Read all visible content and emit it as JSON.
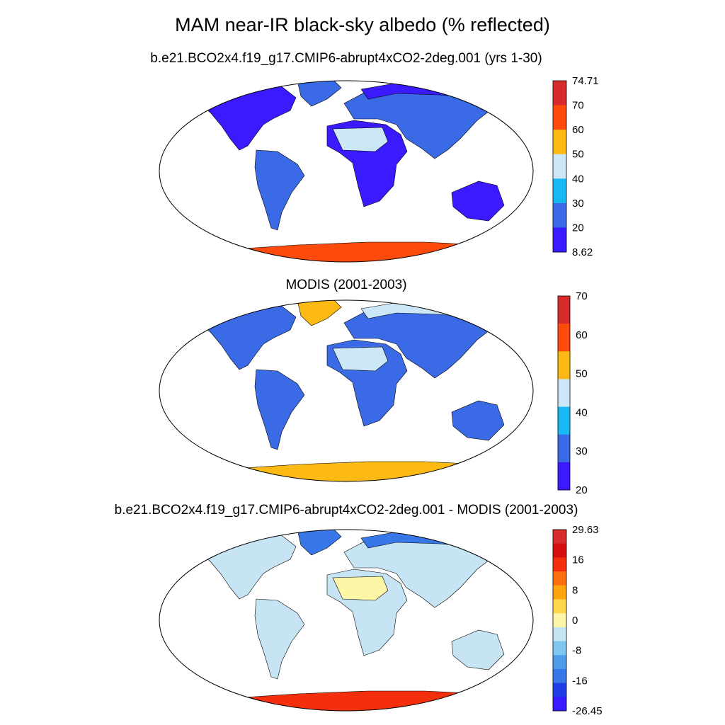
{
  "main_title": "MAM near-IR black-sky albedo (% reflected)",
  "colors": {
    "ocean": "#ffffff",
    "outline": "#000000",
    "absolute_scale": [
      "#3a1aff",
      "#3a6ae6",
      "#17b9f2",
      "#cce7f7",
      "#fdb914",
      "#fd4b0e",
      "#d82b2b"
    ],
    "difference_scale": [
      "#3a1aff",
      "#1f3ee6",
      "#3777e8",
      "#4d9de9",
      "#7fc7f1",
      "#c7e4f5",
      "#fdf6a7",
      "#fed64e",
      "#fda50e",
      "#fd6f0e",
      "#f32f0e",
      "#d60d0d",
      "#d82b2b"
    ]
  },
  "panels": [
    {
      "id": "model",
      "title": "b.e21.BCO2x4.f19_g17.CMIP6-abrupt4xCO2-2deg.001 (yrs 1-30)",
      "colorbar_labels": [
        "74.71",
        "70",
        "60",
        "50",
        "40",
        "30",
        "20",
        "8.62"
      ],
      "region_fill": {
        "greenland": "#3a6ae6",
        "north_america": "#3a1aff",
        "south_america": "#3a6ae6",
        "africa": "#3a1aff",
        "sahara": "#cce7f7",
        "eurasia": "#3a6ae6",
        "arctic_eurasia": "#3a1aff",
        "australia": "#3a1aff",
        "antarctica": "#fd4b0e"
      }
    },
    {
      "id": "obs",
      "title": "MODIS (2001-2003)",
      "colorbar_labels": [
        "70",
        "60",
        "50",
        "40",
        "30",
        "20"
      ],
      "region_fill": {
        "greenland": "#fdb914",
        "north_america": "#3a6ae6",
        "south_america": "#3a6ae6",
        "africa": "#3a6ae6",
        "sahara": "#cce7f7",
        "eurasia": "#3a6ae6",
        "arctic_eurasia": "#cce7f7",
        "australia": "#3a6ae6",
        "antarctica": "#fdb914"
      }
    },
    {
      "id": "diff",
      "title": "b.e21.BCO2x4.f19_g17.CMIP6-abrupt4xCO2-2deg.001 - MODIS (2001-2003)",
      "colorbar_labels": [
        "29.63",
        "16",
        "8",
        "0",
        "-8",
        "-16",
        "-26.45"
      ],
      "region_fill": {
        "greenland": "#3777e8",
        "north_america": "#c7e4f5",
        "south_america": "#c7e4f5",
        "africa": "#c7e4f5",
        "sahara": "#fdf6a7",
        "eurasia": "#c7e4f5",
        "arctic_eurasia": "#3777e8",
        "australia": "#c7e4f5",
        "antarctica": "#f32f0e"
      }
    }
  ]
}
